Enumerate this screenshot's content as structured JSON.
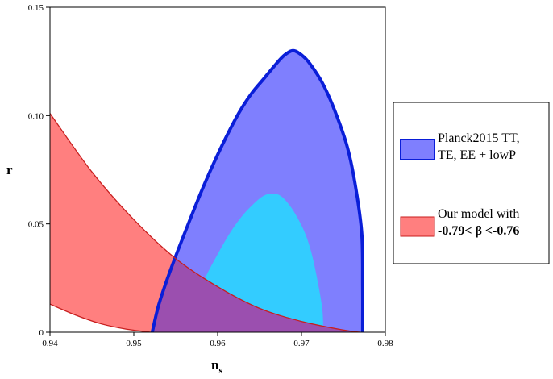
{
  "chart_data": {
    "type": "area",
    "xlabel": "n",
    "xlabel_subscript": "s",
    "ylabel": "r",
    "xlim": [
      0.94,
      0.98
    ],
    "ylim": [
      0,
      0.15
    ],
    "x_ticks": [
      0.94,
      0.95,
      0.96,
      0.97,
      0.98
    ],
    "x_tick_labels": [
      "0.94",
      "0.95",
      "0.96",
      "0.97",
      "0.98"
    ],
    "y_ticks": [
      0,
      0.05,
      0.1,
      0.15
    ],
    "y_tick_labels": [
      "0",
      "0.05",
      "0.10",
      "0.15"
    ],
    "grid": false,
    "legend_position": "right",
    "series": [
      {
        "name": "Planck2015 TT, TE, EE + lowP",
        "kind": "contour-95",
        "fill": "#7f7ffe",
        "stroke": "#0a1ed8",
        "x": [
          0.9522,
          0.953,
          0.9545,
          0.9565,
          0.9585,
          0.9605,
          0.9625,
          0.964,
          0.9655,
          0.967,
          0.968,
          0.969,
          0.97,
          0.971,
          0.9725,
          0.974,
          0.9755,
          0.9765,
          0.9772,
          0.9773,
          0.9773
        ],
        "y": [
          0,
          0.013,
          0.03,
          0.05,
          0.069,
          0.086,
          0.101,
          0.11,
          0.117,
          0.124,
          0.128,
          0.13,
          0.128,
          0.124,
          0.115,
          0.102,
          0.085,
          0.066,
          0.045,
          0.02,
          0
        ]
      },
      {
        "name": "",
        "kind": "contour-68",
        "fill": "#33ccff",
        "x": [
          0.9563,
          0.9572,
          0.9585,
          0.96,
          0.9615,
          0.963,
          0.9645,
          0.9655,
          0.9665,
          0.9675,
          0.9685,
          0.9695,
          0.9705,
          0.9713,
          0.972,
          0.9725,
          0.9726
        ],
        "y": [
          0,
          0.013,
          0.025,
          0.036,
          0.046,
          0.054,
          0.06,
          0.063,
          0.064,
          0.063,
          0.059,
          0.053,
          0.045,
          0.035,
          0.022,
          0.01,
          0
        ]
      },
      {
        "name": "Our model with -0.79< β <-0.76",
        "kind": "band",
        "fill": "#ff7f7f",
        "stroke": "#c81e1e",
        "upper_x": [
          0.94,
          0.945,
          0.95,
          0.955,
          0.96,
          0.965,
          0.97,
          0.975,
          0.977
        ],
        "upper_y": [
          0.101,
          0.074,
          0.052,
          0.034,
          0.021,
          0.011,
          0.005,
          0.001,
          0
        ],
        "lower_x": [
          0.94,
          0.943,
          0.946,
          0.949,
          0.952
        ],
        "lower_y": [
          0.013,
          0.008,
          0.004,
          0.0015,
          0
        ]
      }
    ],
    "legend": [
      {
        "label_lines": [
          "Planck2015 TT,",
          "TE, EE + lowP"
        ],
        "swatch_fill": "#7f7ffe",
        "swatch_stroke": "#0a1ed8"
      },
      {
        "label_lines": [
          "Our model with",
          "-0.79< β <-0.76"
        ],
        "swatch_fill": "#ff7f7f",
        "swatch_stroke": "#c81e1e"
      }
    ]
  }
}
